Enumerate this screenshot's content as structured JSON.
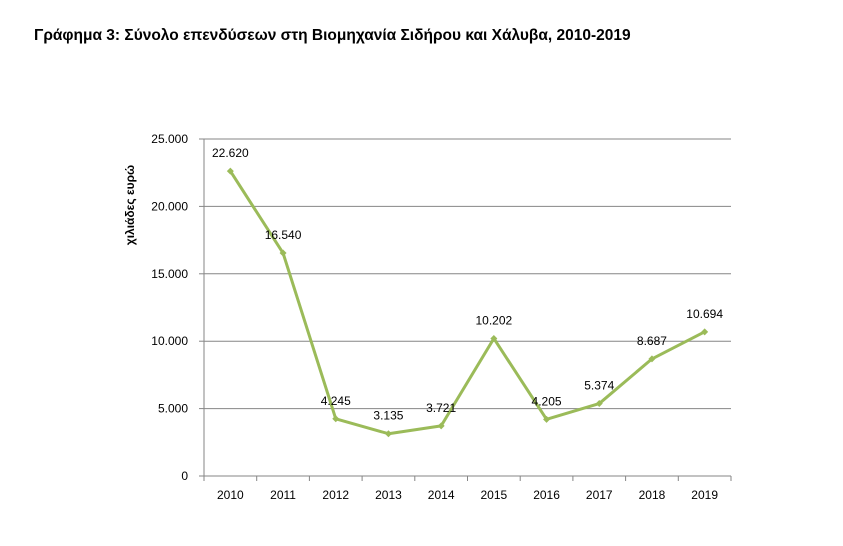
{
  "page": {
    "title": "Γράφημα 3: Σύνολο επενδύσεων στη Βιομηχανία Σιδήρου και Χάλυβα, 2010-2019"
  },
  "chart_data": {
    "type": "line",
    "title": "Γράφημα 3: Σύνολο επενδύσεων στη Βιομηχανία Σιδήρου και Χάλυβα, 2010-2019",
    "xlabel": "",
    "ylabel": "χιλιάδες ευρώ",
    "categories": [
      "2010",
      "2011",
      "2012",
      "2013",
      "2014",
      "2015",
      "2016",
      "2017",
      "2018",
      "2019"
    ],
    "values": [
      22620,
      16540,
      4245,
      3135,
      3721,
      10202,
      4205,
      5374,
      8687,
      10694
    ],
    "data_labels": [
      "22.620",
      "16.540",
      "4.245",
      "3.135",
      "3.721",
      "10.202",
      "4.205",
      "5.374",
      "8.687",
      "10.694"
    ],
    "ylim": [
      0,
      25000
    ],
    "yticks": [
      0,
      5000,
      10000,
      15000,
      20000,
      25000
    ],
    "ytick_labels": [
      "0",
      "5.000",
      "10.000",
      "15.000",
      "20.000",
      "25.000"
    ],
    "grid": true,
    "legend": "none",
    "color": "#9BBB59"
  }
}
